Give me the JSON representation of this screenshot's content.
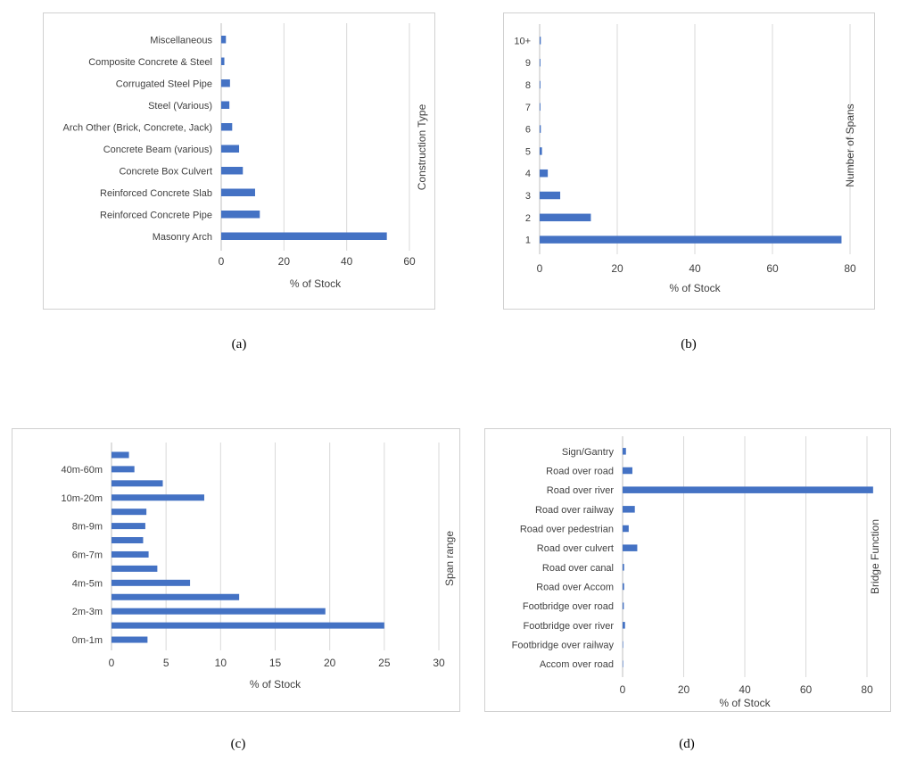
{
  "colors": {
    "bar": "#4472C4",
    "grid": "#d9d9d9",
    "text": "#404040"
  },
  "captions": [
    "(a)",
    "(b)",
    "(c)",
    "(d)"
  ],
  "chart_data": [
    {
      "type": "bar",
      "orientation": "horizontal",
      "categories": [
        "Masonry Arch",
        "Reinforced Concrete Pipe",
        "Reinforced Concrete Slab",
        "Concrete Box Culvert",
        "Concrete Beam (various)",
        "Arch Other (Brick, Concrete, Jack)",
        "Steel (Various)",
        "Corrugated Steel Pipe",
        "Composite Concrete & Steel",
        "Miscellaneous"
      ],
      "values": [
        52.8,
        12.3,
        10.8,
        6.9,
        5.7,
        3.5,
        2.6,
        2.8,
        1.0,
        1.5
      ],
      "xlabel": "% of Stock",
      "ylabel": "Construction Type",
      "xlim": [
        0,
        60
      ],
      "xticks": [
        0,
        20,
        40,
        60
      ],
      "grid": true
    },
    {
      "type": "bar",
      "orientation": "horizontal",
      "categories": [
        "1",
        "2",
        "3",
        "4",
        "5",
        "6",
        "7",
        "8",
        "9",
        "10+"
      ],
      "values": [
        77.8,
        13.2,
        5.3,
        2.1,
        0.6,
        0.3,
        0.2,
        0.2,
        0.2,
        0.3
      ],
      "xlabel": "%  of Stock",
      "ylabel": "Number of Spans",
      "xlim": [
        0,
        80
      ],
      "xticks": [
        0,
        20,
        40,
        60,
        80
      ],
      "grid": true
    },
    {
      "type": "bar",
      "orientation": "horizontal",
      "categories": [
        "0m-1m",
        "",
        "2m-3m",
        "",
        "4m-5m",
        "",
        "6m-7m",
        "",
        "8m-9m",
        "",
        "10m-20m",
        "",
        "40m-60m",
        ""
      ],
      "values": [
        3.3,
        25.0,
        19.6,
        11.7,
        7.2,
        4.2,
        3.4,
        2.9,
        3.1,
        3.2,
        8.5,
        4.7,
        2.1,
        1.6
      ],
      "xlabel": "% of Stock",
      "ylabel": "Span range",
      "xlim": [
        0,
        30
      ],
      "xticks": [
        0,
        5,
        10,
        15,
        20,
        25,
        30
      ],
      "grid": true
    },
    {
      "type": "bar",
      "orientation": "horizontal",
      "categories": [
        "Accom over road",
        "Footbridge over railway",
        "Footbridge over river",
        "Footbridge over road",
        "Road over Accom",
        "Road over canal",
        "Road over culvert",
        "Road over pedestrian",
        "Road over railway",
        "Road over river",
        "Road over road",
        "Sign/Gantry"
      ],
      "values": [
        0.1,
        0.1,
        0.8,
        0.4,
        0.5,
        0.5,
        4.8,
        2.0,
        4.0,
        82.0,
        3.2,
        1.1
      ],
      "xlabel": "% of Stock",
      "ylabel": "Bridge Function",
      "xlim": [
        0,
        80
      ],
      "xticks": [
        0,
        20,
        40,
        60,
        80
      ],
      "grid": true
    }
  ]
}
